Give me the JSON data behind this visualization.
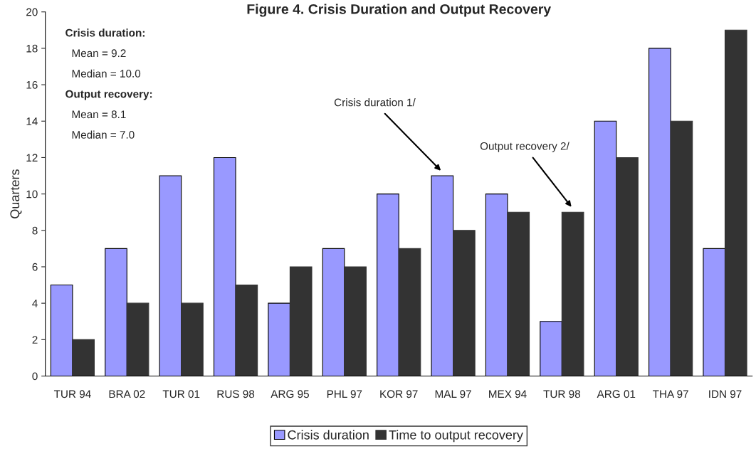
{
  "chart_data": {
    "type": "bar",
    "title": "Figure 4. Crisis Duration and Output Recovery",
    "ylabel": "Quarters",
    "categories": [
      "TUR 94",
      "BRA 02",
      "TUR 01",
      "RUS 98",
      "ARG 95",
      "PHL 97",
      "KOR 97",
      "MAL 97",
      "MEX 94",
      "TUR 98",
      "ARG 01",
      "THA 97",
      "IDN 97"
    ],
    "series": [
      {
        "name": "Crisis duration",
        "color": "#9999ff",
        "values": [
          5,
          7,
          11,
          12,
          4,
          7,
          10,
          11,
          10,
          3,
          14,
          18,
          7
        ]
      },
      {
        "name": "Time to output recovery",
        "color": "#333333",
        "values": [
          2,
          4,
          4,
          5,
          6,
          6,
          7,
          8,
          9,
          9,
          12,
          14,
          19
        ]
      }
    ],
    "ylim": [
      0,
      20
    ],
    "yticks": [
      0,
      2,
      4,
      6,
      8,
      10,
      12,
      14,
      16,
      18,
      20
    ],
    "grid": false,
    "legend": "bottom",
    "annotations": [
      "Crisis duration:",
      "Mean = 9.2",
      "Median = 10.0",
      "Output recovery:",
      "Mean = 8.1",
      "Median = 7.0",
      "Crisis duration 1/",
      "Output recovery 2/"
    ]
  }
}
